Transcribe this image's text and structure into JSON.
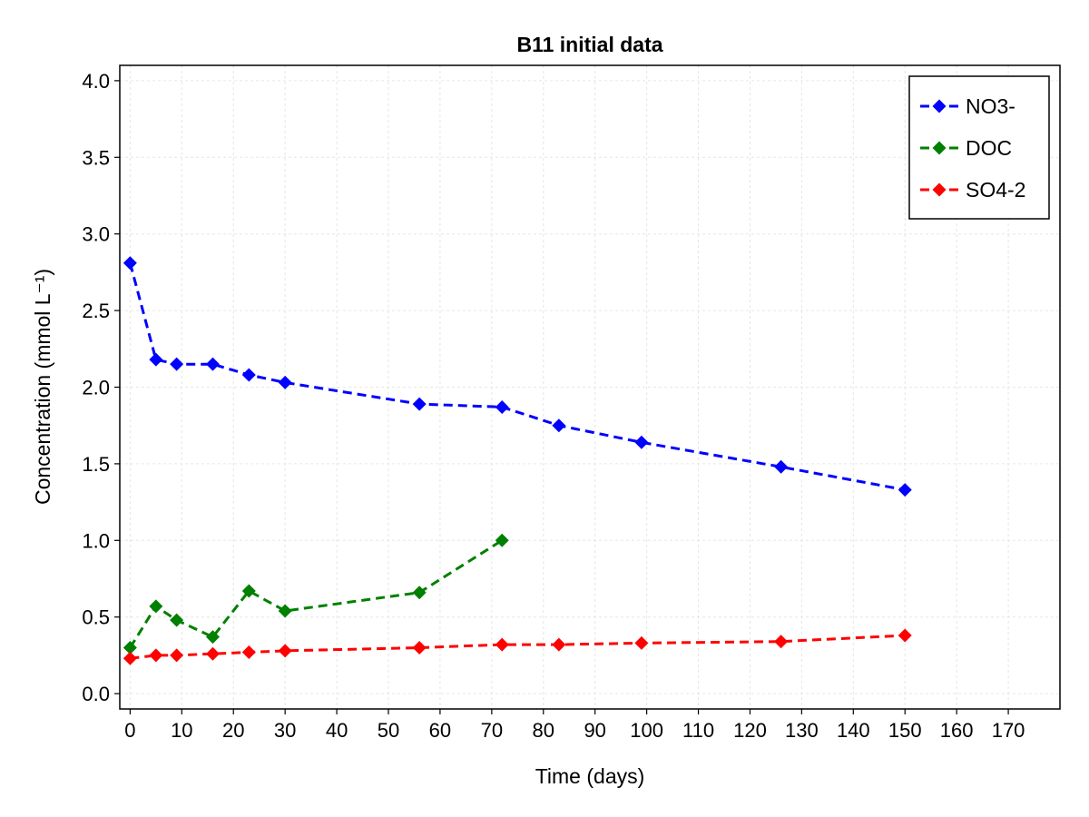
{
  "chart_data": {
    "type": "line",
    "title": "B11 initial data",
    "xlabel": "Time (days)",
    "ylabel": "Concentration (mmol L⁻¹)",
    "xlim": [
      -2,
      180
    ],
    "ylim": [
      -0.1,
      4.1
    ],
    "xticks": [
      0,
      10,
      20,
      30,
      40,
      50,
      60,
      70,
      80,
      90,
      100,
      110,
      120,
      130,
      140,
      150,
      160,
      170
    ],
    "yticks": [
      0.0,
      0.5,
      1.0,
      1.5,
      2.0,
      2.5,
      3.0,
      3.5,
      4.0
    ],
    "grid": true,
    "legend_position": "top-right",
    "series": [
      {
        "name": "NO3-",
        "color": "#0000ff",
        "x": [
          0,
          5,
          9,
          16,
          23,
          30,
          56,
          72,
          83,
          99,
          126,
          150
        ],
        "y": [
          2.81,
          2.18,
          2.15,
          2.15,
          2.08,
          2.03,
          1.89,
          1.87,
          1.75,
          1.64,
          1.48,
          1.33
        ]
      },
      {
        "name": "DOC",
        "color": "#008000",
        "x": [
          0,
          5,
          9,
          16,
          23,
          30,
          56,
          72
        ],
        "y": [
          0.3,
          0.57,
          0.48,
          0.37,
          0.67,
          0.54,
          0.66,
          1.0
        ]
      },
      {
        "name": "SO4-2",
        "color": "#ff0000",
        "x": [
          0,
          5,
          9,
          16,
          23,
          30,
          56,
          72,
          83,
          99,
          126,
          150
        ],
        "y": [
          0.23,
          0.25,
          0.25,
          0.26,
          0.27,
          0.28,
          0.3,
          0.32,
          0.32,
          0.33,
          0.34,
          0.38
        ]
      }
    ]
  }
}
